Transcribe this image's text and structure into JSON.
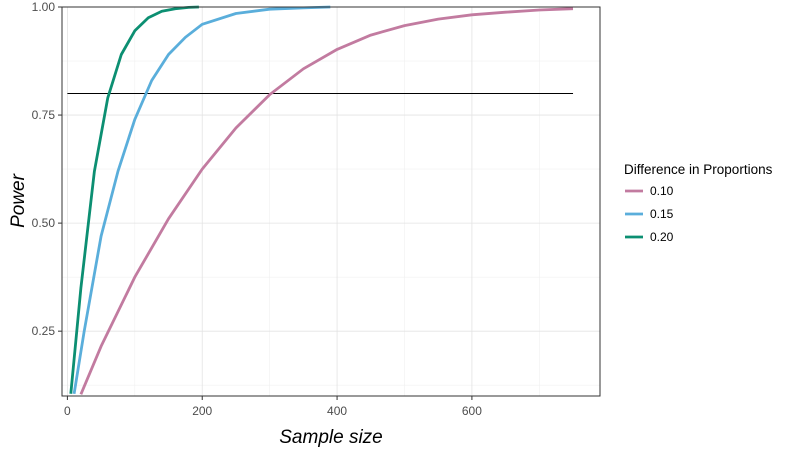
{
  "chart_data": {
    "type": "line",
    "xlabel": "Sample size",
    "ylabel": "Power",
    "xlim": [
      -8,
      790
    ],
    "ylim": [
      0.1,
      1.0
    ],
    "x_ticks": [
      0,
      200,
      400,
      600
    ],
    "x_tick_labels": [
      "0",
      "200",
      "400",
      "600"
    ],
    "y_ticks": [
      0.25,
      0.5,
      0.75,
      1.0
    ],
    "y_tick_labels": [
      "0.25",
      "0.50",
      "0.75",
      "1.00"
    ],
    "grid": true,
    "legend": {
      "title": "Difference in Proportions",
      "placement": "right"
    },
    "reference_line": {
      "y": 0.8,
      "x_from": 0,
      "x_to": 750
    },
    "series": [
      {
        "name": "0.10",
        "color": "#C27BA0",
        "x": [
          20,
          50,
          100,
          150,
          200,
          250,
          300,
          350,
          400,
          450,
          500,
          550,
          600,
          650,
          700,
          750
        ],
        "y": [
          0.104,
          0.215,
          0.375,
          0.51,
          0.625,
          0.72,
          0.797,
          0.857,
          0.902,
          0.935,
          0.957,
          0.972,
          0.982,
          0.988,
          0.993,
          0.996
        ]
      },
      {
        "name": "0.15",
        "color": "#5AAEDB",
        "x": [
          10,
          25,
          50,
          75,
          100,
          125,
          150,
          175,
          200,
          250,
          300,
          350,
          390
        ],
        "y": [
          0.105,
          0.25,
          0.47,
          0.62,
          0.74,
          0.83,
          0.89,
          0.93,
          0.96,
          0.985,
          0.995,
          0.998,
          1.0
        ]
      },
      {
        "name": "0.20",
        "color": "#0C8F72",
        "x": [
          5,
          20,
          40,
          60,
          80,
          100,
          120,
          140,
          160,
          180,
          195
        ],
        "y": [
          0.105,
          0.35,
          0.62,
          0.79,
          0.89,
          0.945,
          0.975,
          0.99,
          0.996,
          0.999,
          1.0
        ]
      }
    ]
  }
}
